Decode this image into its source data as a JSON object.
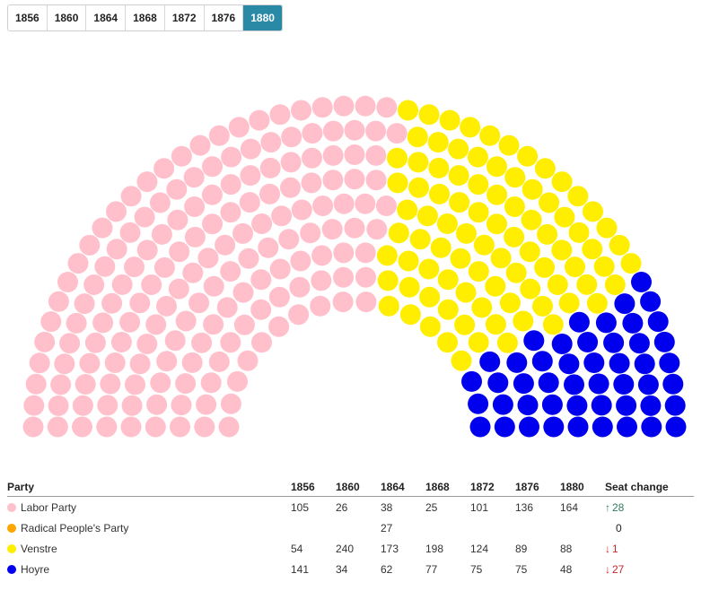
{
  "tabs": [
    "1856",
    "1860",
    "1864",
    "1868",
    "1872",
    "1876",
    "1880"
  ],
  "active_tab": "1880",
  "table": {
    "headers": {
      "party": "Party",
      "years": [
        "1856",
        "1860",
        "1864",
        "1868",
        "1872",
        "1876",
        "1880"
      ],
      "change": "Seat change"
    },
    "rows": [
      {
        "party": "Labor Party",
        "color": "#ffc0cb",
        "values": [
          "105",
          "26",
          "38",
          "25",
          "101",
          "136",
          "164"
        ],
        "change": {
          "direction": "up",
          "value": "28"
        }
      },
      {
        "party": "Radical People's Party",
        "color": "#ffa500",
        "values": [
          "",
          "",
          "27",
          "",
          "",
          "",
          ""
        ],
        "change": {
          "direction": "none",
          "value": "0"
        }
      },
      {
        "party": "Venstre",
        "color": "#ffee00",
        "values": [
          "54",
          "240",
          "173",
          "198",
          "124",
          "89",
          "88"
        ],
        "change": {
          "direction": "down",
          "value": "1"
        }
      },
      {
        "party": "Hoyre",
        "color": "#0000ee",
        "values": [
          "141",
          "34",
          "62",
          "77",
          "75",
          "75",
          "48"
        ],
        "change": {
          "direction": "down",
          "value": "27"
        }
      }
    ]
  },
  "chart_data": {
    "type": "parliament",
    "year": "1880",
    "total_seats": 300,
    "series": [
      {
        "name": "Labor Party",
        "seats": 164,
        "color": "#ffc0cb"
      },
      {
        "name": "Radical People's Party",
        "seats": 0,
        "color": "#ffa500"
      },
      {
        "name": "Venstre",
        "seats": 88,
        "color": "#ffee00"
      },
      {
        "name": "Hoyre",
        "seats": 48,
        "color": "#0000ee"
      }
    ]
  }
}
